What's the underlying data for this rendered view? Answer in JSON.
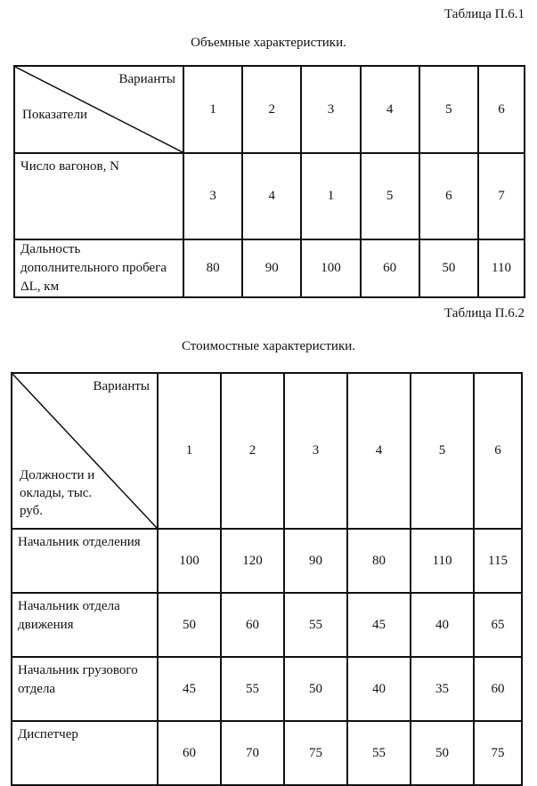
{
  "table1": {
    "caption": "Таблица П.6.1",
    "title": "Объемные характеристики.",
    "corner_top": "Варианты",
    "corner_bottom": "Показатели",
    "variants": [
      "1",
      "2",
      "3",
      "4",
      "5",
      "6"
    ],
    "rows": [
      {
        "label": "Число вагонов, N",
        "values": [
          "3",
          "4",
          "1",
          "5",
          "6",
          "7"
        ]
      },
      {
        "label": "Дальность дополнительного пробега ΔL, км",
        "values": [
          "80",
          "90",
          "100",
          "60",
          "50",
          "110"
        ]
      }
    ]
  },
  "table2": {
    "caption": "Таблица П.6.2",
    "title": "Стоимостные характеристики.",
    "corner_top": "Варианты",
    "corner_bottom": "Должности и оклады, тыс. руб.",
    "variants": [
      "1",
      "2",
      "3",
      "4",
      "5",
      "6"
    ],
    "rows": [
      {
        "label": "Начальник отделения",
        "values": [
          "100",
          "120",
          "90",
          "80",
          "110",
          "115"
        ]
      },
      {
        "label": "Начальник отдела движения",
        "values": [
          "50",
          "60",
          "55",
          "45",
          "40",
          "65"
        ]
      },
      {
        "label": "Начальник грузового отдела",
        "values": [
          "45",
          "55",
          "50",
          "40",
          "35",
          "60"
        ]
      },
      {
        "label": "Диспетчер",
        "values": [
          "60",
          "70",
          "75",
          "55",
          "50",
          "75"
        ]
      }
    ]
  }
}
